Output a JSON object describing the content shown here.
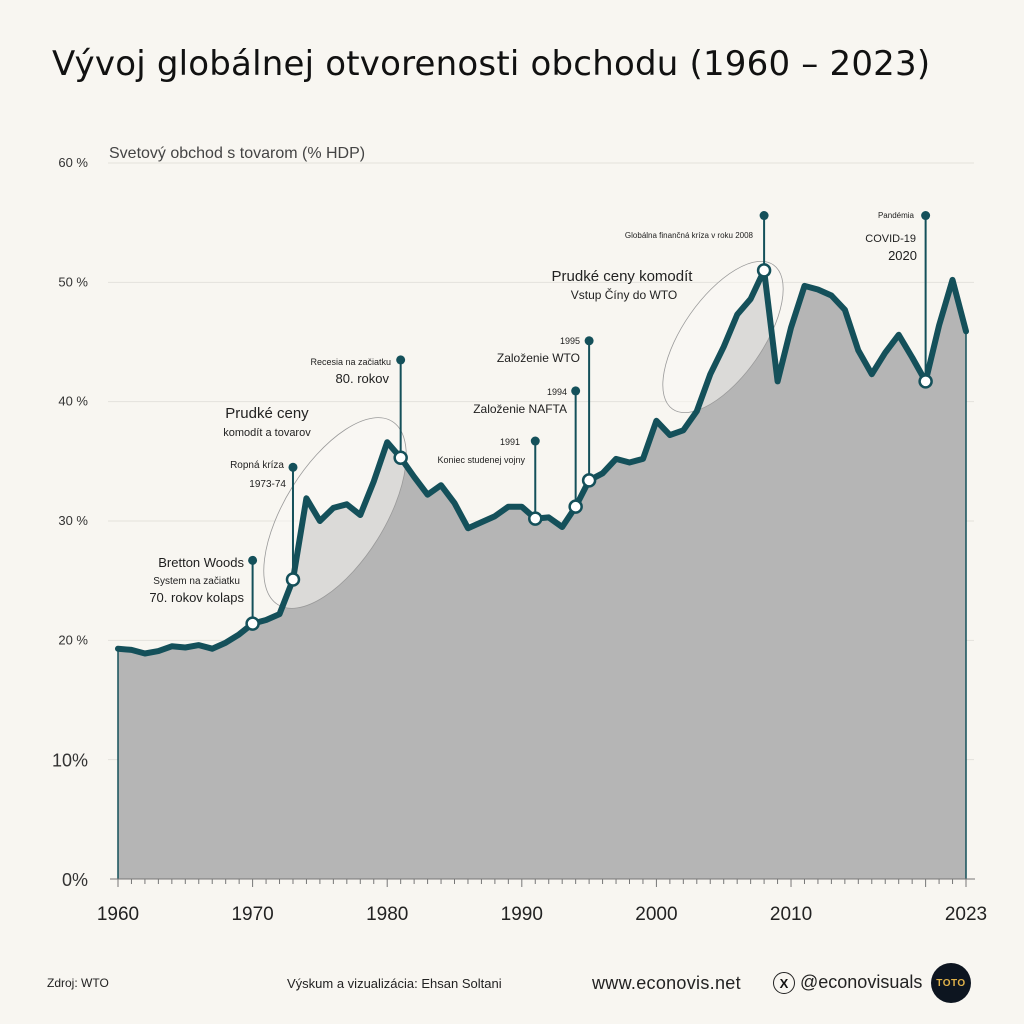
{
  "title": "Vývoj globálnej otvorenosti obchodu (1960 – 2023)",
  "chart_data": {
    "type": "area",
    "ylabel": "Svetový obchod s tovarom (% HDP)",
    "ylim": [
      0,
      60
    ],
    "xlim": [
      1960,
      2023
    ],
    "y_ticks": [
      "0%",
      "10%",
      "20 %",
      "30 %",
      "40 %",
      "50 %",
      "60 %"
    ],
    "x_ticks": [
      "1960",
      "1970",
      "1980",
      "1990",
      "2000",
      "2010",
      "2023"
    ],
    "series": [
      {
        "x": [
          1960,
          1961,
          1962,
          1963,
          1964,
          1965,
          1966,
          1967,
          1968,
          1969,
          1970,
          1971,
          1972,
          1973,
          1974,
          1975,
          1976,
          1977,
          1978,
          1979,
          1980,
          1981,
          1982,
          1983,
          1984,
          1985,
          1986,
          1987,
          1988,
          1989,
          1990,
          1991,
          1992,
          1993,
          1994,
          1995,
          1996,
          1997,
          1998,
          1999,
          2000,
          2001,
          2002,
          2003,
          2004,
          2005,
          2006,
          2007,
          2008,
          2009,
          2010,
          2011,
          2012,
          2013,
          2014,
          2015,
          2016,
          2017,
          2018,
          2019,
          2020,
          2021,
          2022,
          2023
        ],
        "y": [
          19.3,
          19.2,
          18.9,
          19.1,
          19.5,
          19.4,
          19.6,
          19.3,
          19.8,
          20.5,
          21.4,
          21.7,
          22.2,
          25.1,
          31.9,
          30.0,
          31.1,
          31.4,
          30.5,
          33.3,
          36.6,
          35.3,
          33.7,
          32.2,
          33.0,
          31.5,
          29.4,
          29.9,
          30.4,
          31.2,
          31.2,
          30.2,
          30.3,
          29.5,
          31.2,
          33.4,
          34.0,
          35.2,
          34.9,
          35.2,
          38.4,
          37.2,
          37.6,
          39.2,
          42.3,
          44.6,
          47.3,
          48.6,
          51.0,
          41.7,
          46.2,
          49.7,
          49.4,
          48.9,
          47.7,
          44.3,
          42.3,
          44.1,
          45.6,
          43.7,
          41.7,
          46.4,
          50.2,
          45.9
        ]
      }
    ],
    "annotations": [
      {
        "year": 1970,
        "value": 21.4,
        "lines": [
          "Bretton Woods",
          "System na začiatku",
          "70. rokov kolaps"
        ]
      },
      {
        "year": 1973,
        "value": 25.1,
        "lines": [
          "Ropná kríza",
          "1973-74"
        ]
      },
      {
        "year": 1981,
        "value": 35.3,
        "lines": [
          "Recesia na začiatku",
          "80. rokov"
        ]
      },
      {
        "year": 1991,
        "value": 30.2,
        "lines": [
          "1991",
          "Koniec studenej vojny"
        ]
      },
      {
        "year": 1994,
        "value": 31.2,
        "lines": [
          "1994",
          "Založenie NAFTA"
        ]
      },
      {
        "year": 1995,
        "value": 33.4,
        "lines": [
          "1995",
          "Založenie WTO"
        ]
      },
      {
        "year": 2008,
        "value": 51.0,
        "lines": [
          "Globálna finančná kríza v roku 2008"
        ]
      },
      {
        "year": 2020,
        "value": 41.7,
        "lines": [
          "Pandémia",
          "COVID-19",
          "2020"
        ]
      }
    ],
    "highlight_labels": [
      [
        "Prudké ceny",
        "komodít a tovarov"
      ],
      [
        "Prudké ceny komodít",
        "Vstup Číny do WTO"
      ]
    ],
    "line_color": "#14505a",
    "fill_color": "#b5b5b5"
  },
  "footer": {
    "source": "Zdroj: WTO",
    "credit": "Výskum a vizualizácia: Ehsan Soltani",
    "website": "www.econovis.net",
    "x_icon": "x-logo-icon",
    "handle": "@econovisuals",
    "badge": "TOTO"
  }
}
